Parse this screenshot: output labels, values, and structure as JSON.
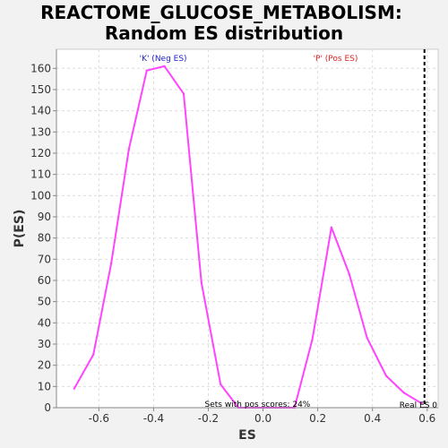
{
  "chart_data": {
    "type": "line",
    "title_line1": "REACTOME_GLUCOSE_METABOLISM:",
    "title_line2": "Random ES distribution",
    "xlabel": "ES",
    "ylabel": "P(ES)",
    "xlim": [
      -0.755,
      0.64
    ],
    "ylim": [
      0,
      169
    ],
    "grid": true,
    "x_ticks": [
      -0.6,
      -0.4,
      -0.2,
      0.0,
      0.2,
      0.4,
      0.6
    ],
    "x_tick_labels": [
      "-0.6",
      "-0.4",
      "-0.2",
      "0.0",
      "0.2",
      "0.4",
      "0.6"
    ],
    "y_ticks": [
      0,
      10,
      20,
      30,
      40,
      50,
      60,
      70,
      80,
      90,
      100,
      110,
      120,
      130,
      140,
      150,
      160
    ],
    "y_tick_labels": [
      "0",
      "10",
      "20",
      "30",
      "40",
      "50",
      "60",
      "70",
      "80",
      "90",
      "100",
      "110",
      "120",
      "130",
      "140",
      "150",
      "160"
    ],
    "series": [
      {
        "color": "#ff44ff",
        "x": [
          -0.69,
          -0.62,
          -0.555,
          -0.49,
          -0.425,
          -0.36,
          -0.29,
          -0.225,
          -0.155,
          -0.09,
          -0.025,
          0.045,
          0.115,
          0.18,
          0.25,
          0.315,
          0.38,
          0.45,
          0.515,
          0.58
        ],
        "y": [
          9,
          25,
          68,
          122,
          159,
          161,
          148,
          59,
          11,
          0,
          0,
          0,
          0,
          32,
          85,
          63,
          33,
          15,
          7,
          2
        ]
      }
    ],
    "real_es": {
      "x": 0.59,
      "color": "#000000",
      "label": "Real ES 0"
    },
    "annotations": {
      "neg": {
        "text": "'K' (Neg ES)",
        "color": "#2222cc"
      },
      "pos": {
        "text": "'P' (Pos ES)",
        "color": "#dd2222"
      },
      "pos_scores": {
        "text": "Sets with pos scores: 24%",
        "color": "#000000"
      }
    },
    "colors": {
      "plot_bg": "#ffffff",
      "page_bg": "#f2f2f2",
      "grid": "#dddddd",
      "axis": "#888888"
    }
  }
}
